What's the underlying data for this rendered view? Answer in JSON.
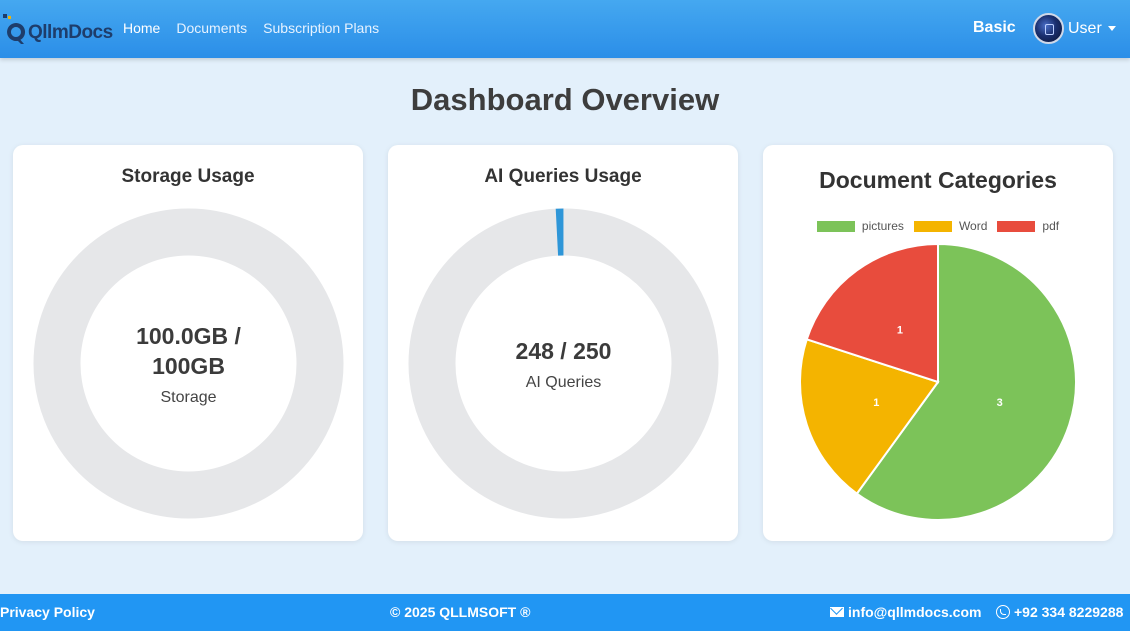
{
  "nav": {
    "logo_text": "QllmDocs",
    "links": [
      {
        "label": "Home",
        "active": true
      },
      {
        "label": "Documents",
        "active": false
      },
      {
        "label": "Subscription Plans",
        "active": false
      }
    ],
    "plan": "Basic",
    "user_label": "User"
  },
  "page_title": "Dashboard Overview",
  "storage": {
    "title": "Storage Usage",
    "value_text": "100.0GB / 100GB",
    "label": "Storage",
    "used": 100.0,
    "total": 100
  },
  "queries": {
    "title": "AI Queries Usage",
    "value_text": "248 / 250",
    "label": "AI Queries",
    "used": 248,
    "total": 250
  },
  "categories": {
    "title": "Document Categories"
  },
  "chart_data": {
    "type": "pie",
    "title": "Document Categories",
    "categories": [
      "pictures",
      "Word",
      "pdf"
    ],
    "values": [
      3,
      1,
      1
    ],
    "colors": [
      "#7cc359",
      "#f4b400",
      "#e84c3d"
    ],
    "legend": "top"
  },
  "colors": {
    "ring_track": "#e6e7e9",
    "ring_fill": "#2e96d8",
    "nav_bg": "#2b8ee8",
    "footer_bg": "#2196f3"
  },
  "footer": {
    "privacy": "Privacy Policy",
    "copyright": "© 2025 QLLMSOFT ®",
    "email": "info@qllmdocs.com",
    "phone": "+92 334 8229288"
  }
}
